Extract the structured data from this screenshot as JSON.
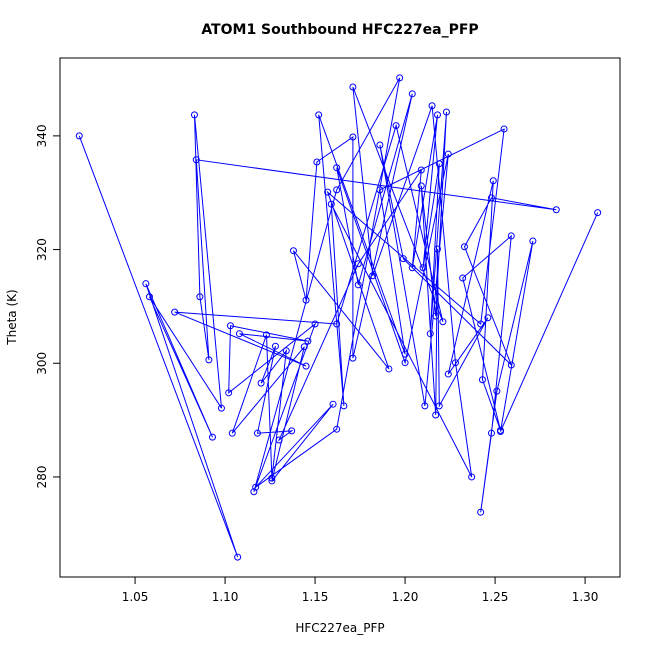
{
  "chart_data": {
    "type": "line-points",
    "title": "ATOM1 Southbound HFC227ea_PFP",
    "x_label": "HFC227ea_PFP",
    "y_label": "Theta (K)",
    "color": "#0000ff",
    "xlim": [
      1.0083,
      1.3194
    ],
    "ylim": [
      262.4,
      353.7
    ],
    "xticks": [
      {
        "value": 1.05,
        "label": "1.05"
      },
      {
        "value": 1.1,
        "label": "1.10"
      },
      {
        "value": 1.15,
        "label": "1.15"
      },
      {
        "value": 1.2,
        "label": "1.20"
      },
      {
        "value": 1.25,
        "label": "1.25"
      },
      {
        "value": 1.3,
        "label": "1.30"
      }
    ],
    "yticks": [
      280,
      300,
      320,
      340
    ],
    "x": [
      1.019,
      1.107,
      1.056,
      1.093,
      1.058,
      1.098,
      1.083,
      1.086,
      1.091,
      1.084,
      1.284,
      1.248,
      1.233,
      1.259,
      1.199,
      1.186,
      1.211,
      1.224,
      1.2,
      1.162,
      1.174,
      1.204,
      1.171,
      1.171,
      1.151,
      1.145,
      1.138,
      1.191,
      1.157,
      1.242,
      1.255,
      1.186,
      1.2,
      1.152,
      1.166,
      1.159,
      1.237,
      1.228,
      1.215,
      1.182,
      1.171,
      1.221,
      1.195,
      1.162,
      1.072,
      1.145,
      1.108,
      1.146,
      1.103,
      1.102,
      1.15,
      1.116,
      1.162,
      1.197,
      1.162,
      1.117,
      1.16,
      1.126,
      1.144,
      1.104,
      1.123,
      1.126,
      1.134,
      1.12,
      1.128,
      1.118,
      1.137,
      1.13,
      1.174,
      1.209,
      1.204,
      1.218,
      1.21,
      1.219,
      1.214,
      1.223,
      1.217,
      1.209,
      1.217,
      1.218,
      1.219,
      1.246,
      1.224,
      1.249,
      1.243,
      1.253,
      1.232,
      1.259,
      1.248,
      1.242,
      1.251,
      1.271,
      1.253,
      1.307
    ],
    "values": [
      340,
      265.9,
      314,
      287,
      311.7,
      292.1,
      343.7,
      311.7,
      300.6,
      335.8,
      327,
      329.1,
      320.5,
      299.7,
      318.4,
      338.4,
      292.5,
      336.8,
      300.1,
      334.4,
      313.8,
      347.4,
      300.9,
      339.8,
      335.4,
      311.1,
      319.8,
      299,
      330.1,
      306.9,
      341.2,
      330.5,
      301.6,
      343.7,
      292.5,
      328,
      280,
      300.1,
      345.3,
      315.4,
      348.6,
      307.3,
      341.8,
      306.9,
      309,
      299.5,
      305.2,
      303.9,
      306.6,
      294.8,
      306.9,
      277.4,
      330.5,
      350.2,
      288.4,
      278.2,
      292.8,
      279.3,
      302.9,
      287.7,
      305,
      279.8,
      302.2,
      296.5,
      303,
      287.7,
      288.1,
      286.5,
      317.5,
      334,
      316.8,
      343.7,
      316.8,
      335.1,
      305.2,
      344.2,
      308.3,
      331.2,
      290.9,
      320.1,
      292.5,
      308,
      298.1,
      332.1,
      297.1,
      288.2,
      315,
      322.4,
      287.7,
      273.8,
      295.1,
      321.5,
      288,
      326.5
    ]
  }
}
